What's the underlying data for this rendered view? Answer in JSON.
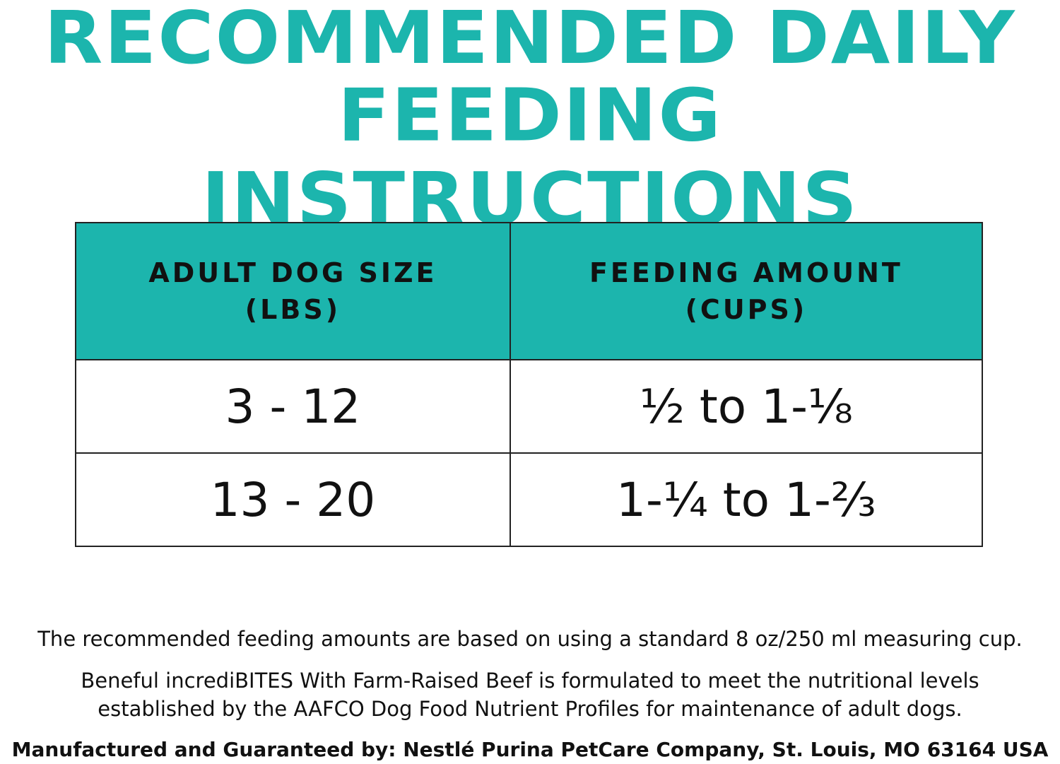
{
  "header": {
    "title_lines": [
      "RECOMMENDED DAILY",
      "FEEDING INSTRUCTIONS"
    ]
  },
  "table": {
    "columns": [
      [
        "ADULT DOG SIZE",
        "(LBS)"
      ],
      [
        "FEEDING AMOUNT",
        "(CUPS)"
      ]
    ],
    "rows": [
      [
        "3 - 12",
        "½ to 1-⅛"
      ],
      [
        "13 - 20",
        "1-¼ to 1-⅔"
      ]
    ]
  },
  "notes": [
    "The recommended feeding amounts are based on using a standard 8 oz/250 ml measuring cup.",
    [
      "Beneful incrediBITES With Farm-Raised Beef is formulated to meet the nutritional levels",
      "established by the AAFCO Dog Food Nutrient Profiles for maintenance of adult dogs."
    ]
  ],
  "footer": "Manufactured and Guaranteed by: Nestlé Purina PetCare Company, St. Louis, MO 63164 USA"
}
